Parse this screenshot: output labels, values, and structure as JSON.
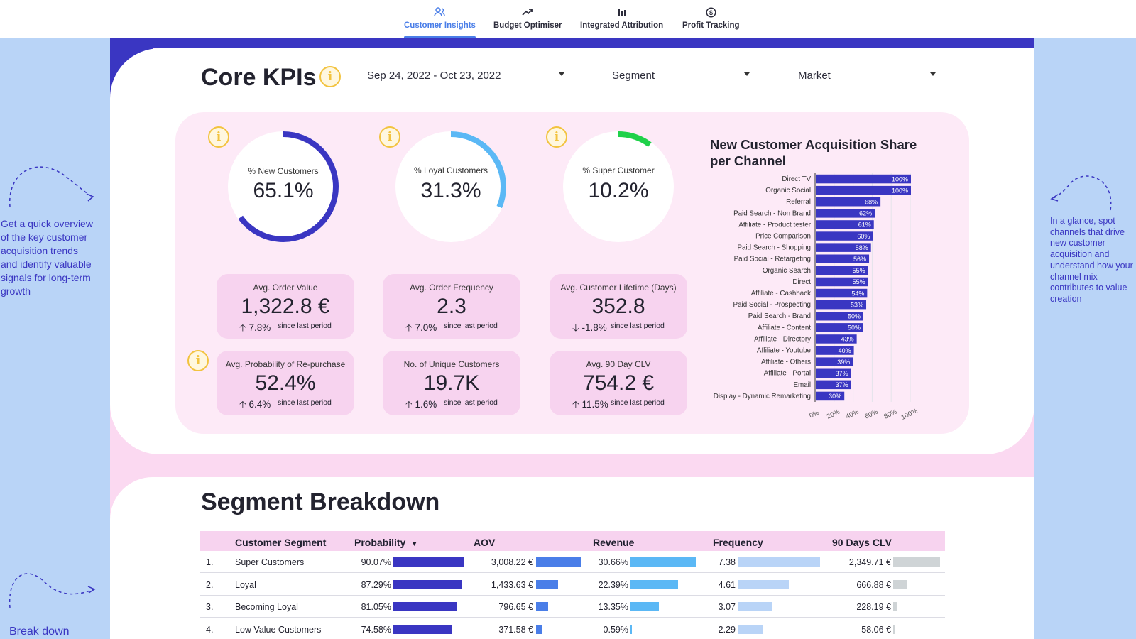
{
  "nav": {
    "tabs": [
      {
        "label": "Customer Insights",
        "icon": "users-icon",
        "active": true
      },
      {
        "label": "Budget Optimiser",
        "icon": "trend-up-icon",
        "active": false
      },
      {
        "label": "Integrated Attribution",
        "icon": "bar-chart-icon",
        "active": false
      },
      {
        "label": "Profit Tracking",
        "icon": "dollar-circle-icon",
        "active": false
      }
    ]
  },
  "colors": {
    "accent": "#3a36c2",
    "pink": "#fbd9f1",
    "sky": "#b9d4f7",
    "info": "#f2c33f",
    "loyal": "#5bb8f5",
    "super": "#1fd14a"
  },
  "core": {
    "title": "Core KPIs",
    "filters": {
      "date": "Sep 24, 2022 - Oct 23, 2022",
      "segment": "Segment",
      "market": "Market"
    }
  },
  "donuts": [
    {
      "label": "% New Customers",
      "value": "65.1%",
      "fraction": 0.651,
      "color": "#3a36c2"
    },
    {
      "label": "% Loyal Customers",
      "value": "31.3%",
      "fraction": 0.313,
      "color": "#5bb8f5"
    },
    {
      "label": "% Super Customer",
      "value": "10.2%",
      "fraction": 0.102,
      "color": "#1fd14a"
    }
  ],
  "kpis": [
    {
      "label": "Avg. Order Value",
      "value": "1,322.8 €",
      "change": "7.8%",
      "dir": "up",
      "since": "since last period"
    },
    {
      "label": "Avg. Order Frequency",
      "value": "2.3",
      "change": "7.0%",
      "dir": "up",
      "since": "since last period"
    },
    {
      "label": "Avg. Customer Lifetime (Days)",
      "value": "352.8",
      "change": "-1.8%",
      "dir": "down",
      "since": "since last period"
    },
    {
      "label": "Avg. Probability of Re-purchase",
      "value": "52.4%",
      "change": "6.4%",
      "dir": "up",
      "since": "since last period"
    },
    {
      "label": "No. of Unique Customers",
      "value": "19.7K",
      "change": "1.6%",
      "dir": "up",
      "since": "since last period"
    },
    {
      "label": "Avg. 90 Day CLV",
      "value": "754.2 €",
      "change": "11.5%",
      "dir": "up",
      "since": "since last period"
    }
  ],
  "chart_data": {
    "type": "bar",
    "orientation": "horizontal",
    "title": "New Customer Acquisition Share per Channel",
    "categories": [
      "Direct TV",
      "Organic Social",
      "Referral",
      "Paid Search - Non Brand",
      "Affiliate - Product tester",
      "Price Comparison",
      "Paid Search - Shopping",
      "Paid Social - Retargeting",
      "Organic Search",
      "Direct",
      "Affiliate - Cashback",
      "Paid Social - Prospecting",
      "Paid Search - Brand",
      "Affiliate - Content",
      "Affiliate - Directory",
      "Affiliate - Youtube",
      "Affiliate - Others",
      "Affiliate - Portal",
      "Email",
      "Display - Dynamic Remarketing"
    ],
    "values": [
      100,
      100,
      68,
      62,
      61,
      60,
      58,
      56,
      55,
      55,
      54,
      53,
      50,
      50,
      43,
      40,
      39,
      37,
      37,
      30
    ],
    "value_labels": [
      "100%",
      "100%",
      "68%",
      "62%",
      "61%",
      "60%",
      "58%",
      "56%",
      "55%",
      "55%",
      "54%",
      "53%",
      "50%",
      "50%",
      "43%",
      "40%",
      "39%",
      "37%",
      "37%",
      "30%"
    ],
    "xticks": [
      "0%",
      "20%",
      "40%",
      "60%",
      "80%",
      "100%"
    ],
    "xlim": [
      0,
      100
    ],
    "grid": true,
    "color": "#3a36c2"
  },
  "notes": {
    "left": "Get a quick overview of the key customer acquisition trends and identify valuable signals for long-term growth",
    "right": "In a glance, spot channels that drive new customer acquisition and understand how your channel mix contributes to value creation",
    "bottom": "Break down"
  },
  "segment": {
    "title": "Segment Breakdown",
    "columns": [
      "Customer Segment",
      "Probability",
      "AOV",
      "Revenue",
      "Frequency",
      "90 Days CLV"
    ],
    "sort_column": "Probability",
    "rows": [
      {
        "idx": "1.",
        "name": "Super Customers",
        "prob": "90.07%",
        "prob_v": 90.07,
        "aov": "3,008.22 €",
        "aov_v": 3008.22,
        "rev": "30.66%",
        "rev_v": 30.66,
        "freq": "7.38",
        "freq_v": 7.38,
        "clv": "2,349.71 €",
        "clv_v": 2349.71
      },
      {
        "idx": "2.",
        "name": "Loyal",
        "prob": "87.29%",
        "prob_v": 87.29,
        "aov": "1,433.63 €",
        "aov_v": 1433.63,
        "rev": "22.39%",
        "rev_v": 22.39,
        "freq": "4.61",
        "freq_v": 4.61,
        "clv": "666.88 €",
        "clv_v": 666.88
      },
      {
        "idx": "3.",
        "name": "Becoming Loyal",
        "prob": "81.05%",
        "prob_v": 81.05,
        "aov": "796.65 €",
        "aov_v": 796.65,
        "rev": "13.35%",
        "rev_v": 13.35,
        "freq": "3.07",
        "freq_v": 3.07,
        "clv": "228.19 €",
        "clv_v": 228.19
      },
      {
        "idx": "4.",
        "name": "Low Value Customers",
        "prob": "74.58%",
        "prob_v": 74.58,
        "aov": "371.58 €",
        "aov_v": 371.58,
        "rev": "0.59%",
        "rev_v": 0.59,
        "freq": "2.29",
        "freq_v": 2.29,
        "clv": "58.06 €",
        "clv_v": 58.06
      }
    ]
  }
}
